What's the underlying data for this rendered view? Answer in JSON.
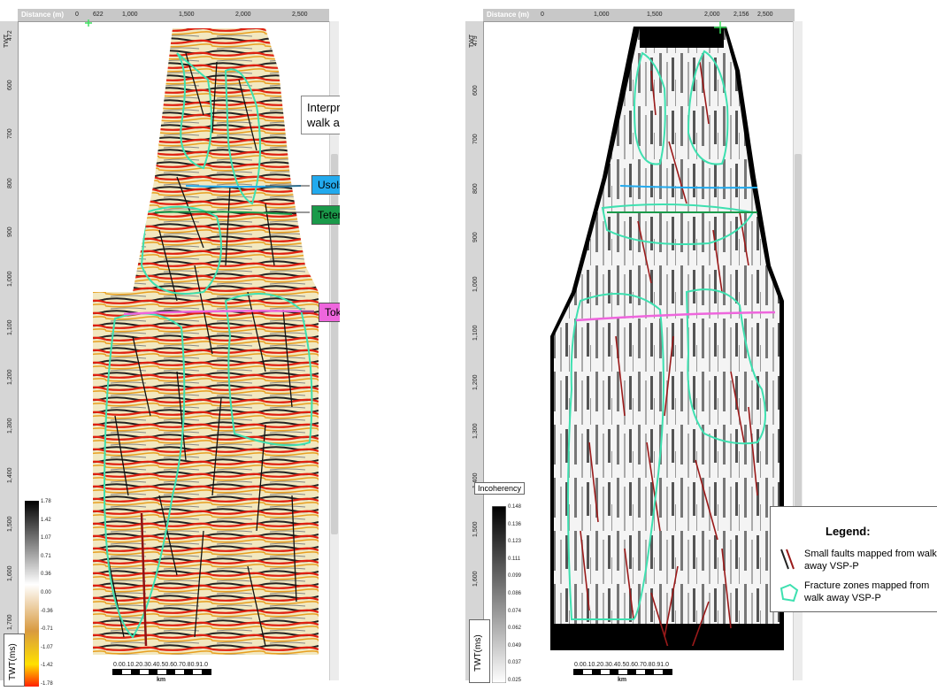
{
  "left_panel": {
    "axis_title": "Distance (m)",
    "top_ticks": [
      "0",
      "622",
      "1,000",
      "1,500",
      "2,000",
      "2,500"
    ],
    "depth_label": "TWT",
    "depth_ticks": [
      "472",
      "600",
      "700",
      "800",
      "900",
      "1,000",
      "1,100",
      "1,200",
      "1,300",
      "1,400",
      "1,500",
      "1,600",
      "1,700"
    ],
    "callout_text": "Interpreted horizons on walk away VSP-P:",
    "horizons": [
      {
        "name": "Usolskaya",
        "color": "#22aaee"
      },
      {
        "name": "Teterskaya",
        "color": "#1a9a4a"
      },
      {
        "name": "Tokurskaya",
        "color": "#ee66dd"
      }
    ],
    "colorbar_ticks": [
      "1.78",
      "1.42",
      "1.07",
      "0.71",
      "0.36",
      "0.00",
      "-0.36",
      "-0.71",
      "-1.07",
      "-1.42",
      "-1.78"
    ],
    "colorbar_unit_label": "TWT(ms)",
    "scale_ticks": "0.00.10.20.30.40.50.60.70.80.91.0",
    "scale_unit": "km"
  },
  "right_panel": {
    "axis_title": "Distance (m)",
    "top_ticks": [
      "0",
      "1,000",
      "1,500",
      "2,000",
      "2,156",
      "2,500"
    ],
    "depth_label": "TWT",
    "depth_ticks": [
      "479",
      "600",
      "700",
      "800",
      "900",
      "1,000",
      "1,100",
      "1,200",
      "1,300",
      "1,400",
      "1,500",
      "1,600",
      "1,700"
    ],
    "colorbar_title": "Incoherency",
    "colorbar_ticks": [
      "0.148",
      "0.136",
      "0.123",
      "0.111",
      "0.099",
      "0.086",
      "0.074",
      "0.062",
      "0.049",
      "0.037",
      "0.025"
    ],
    "colorbar_unit_label": "TWT(ms)",
    "scale_ticks": "0.00.10.20.30.40.50.60.70.80.91.0",
    "scale_unit": "km",
    "legend": {
      "title": "Legend:",
      "faults_text": "Small faults mapped from walk away VSP-P",
      "zones_text": "Fracture zones mapped from walk away VSP-P"
    }
  },
  "colors": {
    "fracture_zone": "#3ee0b0",
    "fault_dark_red": "#8b1414",
    "fault_black": "#111111"
  }
}
